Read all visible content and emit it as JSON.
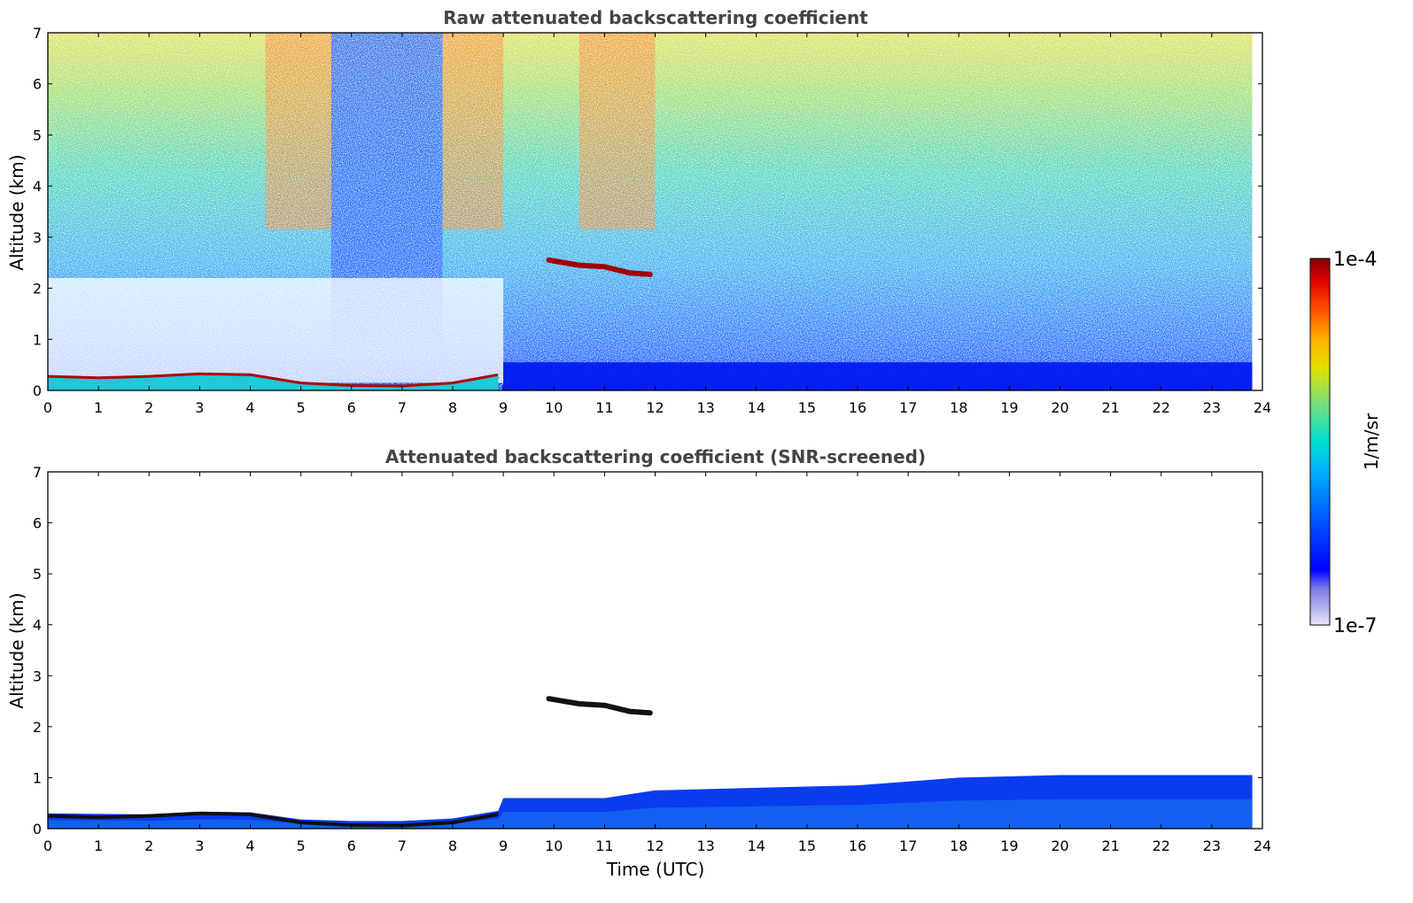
{
  "chart_data": [
    {
      "type": "heatmap",
      "title": "Raw attenuated backscattering coefficient",
      "xlabel": "",
      "ylabel": "Altitude (km)",
      "xlim": [
        0,
        24
      ],
      "ylim": [
        0,
        7
      ],
      "xticks": [
        "0",
        "1",
        "2",
        "3",
        "4",
        "5",
        "6",
        "7",
        "8",
        "9",
        "10",
        "11",
        "12",
        "13",
        "14",
        "15",
        "16",
        "17",
        "18",
        "19",
        "20",
        "21",
        "22",
        "23",
        "24"
      ],
      "yticks": [
        "0",
        "1",
        "2",
        "3",
        "4",
        "5",
        "6",
        "7"
      ],
      "data_end_hour": 23.8,
      "boundary_layer_top_km": [
        {
          "x": 0,
          "y": 0.25
        },
        {
          "x": 1,
          "y": 0.22
        },
        {
          "x": 2,
          "y": 0.25
        },
        {
          "x": 3,
          "y": 0.3
        },
        {
          "x": 4,
          "y": 0.28
        },
        {
          "x": 5,
          "y": 0.12
        },
        {
          "x": 6,
          "y": 0.07
        },
        {
          "x": 7,
          "y": 0.06
        },
        {
          "x": 8,
          "y": 0.12
        },
        {
          "x": 8.9,
          "y": 0.28
        }
      ],
      "cloud_layer_km": [
        {
          "x": 9.9,
          "y": 2.55
        },
        {
          "x": 10.5,
          "y": 2.45
        },
        {
          "x": 11.0,
          "y": 2.42
        },
        {
          "x": 11.5,
          "y": 2.3
        },
        {
          "x": 11.9,
          "y": 2.27
        }
      ],
      "high_noise_periods_hours": [
        [
          4.3,
          5.7
        ],
        [
          7.8,
          9.0
        ],
        [
          10.5,
          12.0
        ]
      ],
      "low_noise_period_hours": [
        5.6,
        7.8
      ]
    },
    {
      "type": "heatmap",
      "title": "Attenuated backscattering coefficient (SNR-screened)",
      "xlabel": "Time (UTC)",
      "ylabel": "Altitude (km)",
      "xlim": [
        0,
        24
      ],
      "ylim": [
        0,
        7
      ],
      "xticks": [
        "0",
        "1",
        "2",
        "3",
        "4",
        "5",
        "6",
        "7",
        "8",
        "9",
        "10",
        "11",
        "12",
        "13",
        "14",
        "15",
        "16",
        "17",
        "18",
        "19",
        "20",
        "21",
        "22",
        "23",
        "24"
      ],
      "yticks": [
        "0",
        "1",
        "2",
        "3",
        "4",
        "5",
        "6",
        "7"
      ],
      "data_end_hour": 23.8,
      "aerosol_layer_top_km": [
        {
          "x": 0,
          "y": 0.3
        },
        {
          "x": 2,
          "y": 0.28
        },
        {
          "x": 3,
          "y": 0.33
        },
        {
          "x": 4,
          "y": 0.32
        },
        {
          "x": 5,
          "y": 0.18
        },
        {
          "x": 6,
          "y": 0.15
        },
        {
          "x": 7,
          "y": 0.15
        },
        {
          "x": 8,
          "y": 0.2
        },
        {
          "x": 8.9,
          "y": 0.35
        },
        {
          "x": 9,
          "y": 0.6
        },
        {
          "x": 11,
          "y": 0.6
        },
        {
          "x": 12,
          "y": 0.75
        },
        {
          "x": 14,
          "y": 0.8
        },
        {
          "x": 16,
          "y": 0.85
        },
        {
          "x": 18,
          "y": 1.0
        },
        {
          "x": 20,
          "y": 1.05
        },
        {
          "x": 22,
          "y": 1.05
        },
        {
          "x": 23.8,
          "y": 1.05
        }
      ],
      "cloud_layer_km": [
        {
          "x": 9.9,
          "y": 2.55
        },
        {
          "x": 10.5,
          "y": 2.45
        },
        {
          "x": 11.0,
          "y": 2.42
        },
        {
          "x": 11.5,
          "y": 2.3
        },
        {
          "x": 11.9,
          "y": 2.27
        }
      ]
    }
  ],
  "colorbar": {
    "label": "1/m/sr",
    "max_label": "1e-4",
    "min_label": "1e-7",
    "scale": "log",
    "colormap": "jet",
    "colors": [
      "#e8e8f8",
      "#b0b0ec",
      "#7a7ae6",
      "#0000ff",
      "#0050ff",
      "#00a0ff",
      "#00d4e0",
      "#40e0b0",
      "#90e060",
      "#e0e000",
      "#ffb000",
      "#ff5000",
      "#e00000",
      "#800000"
    ]
  }
}
